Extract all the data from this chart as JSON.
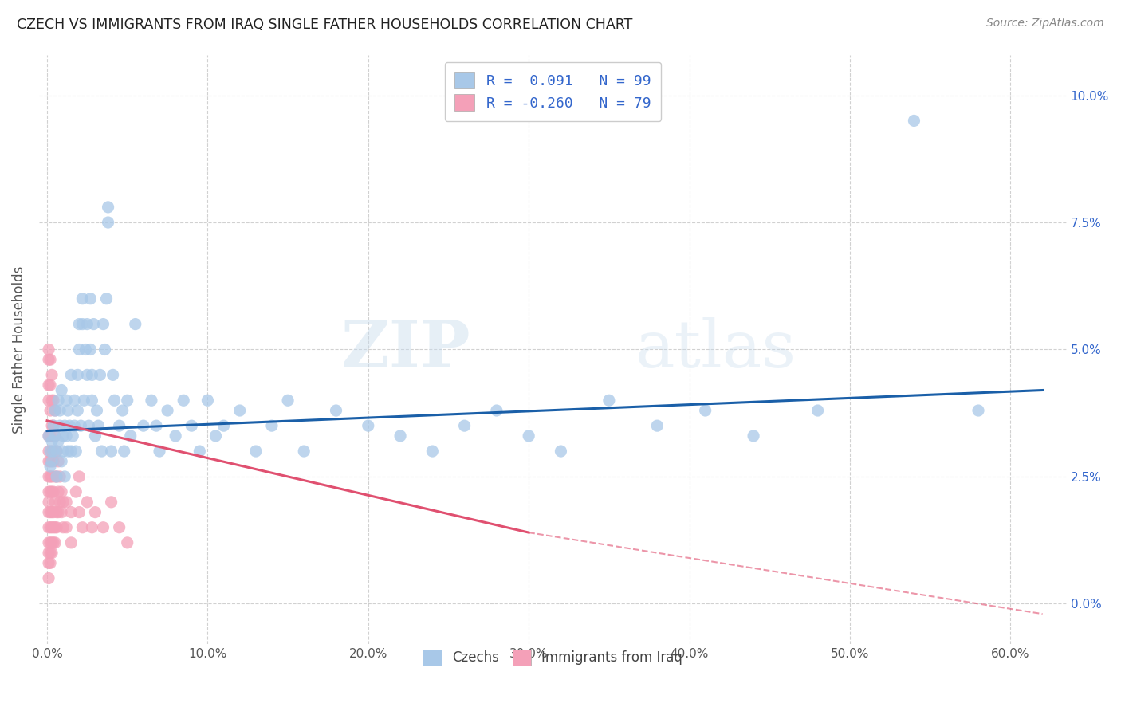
{
  "title": "CZECH VS IMMIGRANTS FROM IRAQ SINGLE FATHER HOUSEHOLDS CORRELATION CHART",
  "source": "Source: ZipAtlas.com",
  "xlabel_ticks": [
    "0.0%",
    "10.0%",
    "20.0%",
    "30.0%",
    "40.0%",
    "50.0%",
    "60.0%"
  ],
  "xlabel_vals": [
    0.0,
    0.1,
    0.2,
    0.3,
    0.4,
    0.5,
    0.6
  ],
  "ylabel_ticks": [
    "0.0%",
    "2.5%",
    "5.0%",
    "7.5%",
    "10.0%"
  ],
  "ylabel_vals": [
    0.0,
    0.025,
    0.05,
    0.075,
    0.1
  ],
  "ylabel_label": "Single Father Households",
  "xlim": [
    -0.005,
    0.635
  ],
  "ylim": [
    -0.008,
    0.108
  ],
  "czech_color": "#a8c8e8",
  "iraq_color": "#f4a0b8",
  "trend_czech_color": "#1a5fa8",
  "trend_iraq_color": "#e05070",
  "watermark_zip": "ZIP",
  "watermark_atlas": "atlas",
  "czech_scatter": [
    [
      0.001,
      0.033
    ],
    [
      0.002,
      0.03
    ],
    [
      0.002,
      0.027
    ],
    [
      0.003,
      0.032
    ],
    [
      0.003,
      0.028
    ],
    [
      0.004,
      0.035
    ],
    [
      0.004,
      0.03
    ],
    [
      0.005,
      0.038
    ],
    [
      0.005,
      0.033
    ],
    [
      0.006,
      0.025
    ],
    [
      0.006,
      0.03
    ],
    [
      0.007,
      0.04
    ],
    [
      0.007,
      0.032
    ],
    [
      0.008,
      0.038
    ],
    [
      0.008,
      0.035
    ],
    [
      0.009,
      0.042
    ],
    [
      0.009,
      0.028
    ],
    [
      0.01,
      0.033
    ],
    [
      0.01,
      0.03
    ],
    [
      0.011,
      0.035
    ],
    [
      0.011,
      0.025
    ],
    [
      0.012,
      0.04
    ],
    [
      0.012,
      0.033
    ],
    [
      0.013,
      0.03
    ],
    [
      0.013,
      0.038
    ],
    [
      0.014,
      0.035
    ],
    [
      0.015,
      0.045
    ],
    [
      0.015,
      0.03
    ],
    [
      0.016,
      0.033
    ],
    [
      0.017,
      0.04
    ],
    [
      0.017,
      0.035
    ],
    [
      0.018,
      0.03
    ],
    [
      0.019,
      0.045
    ],
    [
      0.019,
      0.038
    ],
    [
      0.02,
      0.055
    ],
    [
      0.02,
      0.05
    ],
    [
      0.021,
      0.035
    ],
    [
      0.022,
      0.06
    ],
    [
      0.022,
      0.055
    ],
    [
      0.023,
      0.04
    ],
    [
      0.024,
      0.05
    ],
    [
      0.025,
      0.045
    ],
    [
      0.025,
      0.055
    ],
    [
      0.026,
      0.035
    ],
    [
      0.027,
      0.05
    ],
    [
      0.027,
      0.06
    ],
    [
      0.028,
      0.04
    ],
    [
      0.028,
      0.045
    ],
    [
      0.029,
      0.055
    ],
    [
      0.03,
      0.033
    ],
    [
      0.031,
      0.038
    ],
    [
      0.032,
      0.035
    ],
    [
      0.033,
      0.045
    ],
    [
      0.034,
      0.03
    ],
    [
      0.035,
      0.055
    ],
    [
      0.036,
      0.05
    ],
    [
      0.037,
      0.06
    ],
    [
      0.038,
      0.075
    ],
    [
      0.038,
      0.078
    ],
    [
      0.04,
      0.03
    ],
    [
      0.041,
      0.045
    ],
    [
      0.042,
      0.04
    ],
    [
      0.045,
      0.035
    ],
    [
      0.047,
      0.038
    ],
    [
      0.048,
      0.03
    ],
    [
      0.05,
      0.04
    ],
    [
      0.052,
      0.033
    ],
    [
      0.055,
      0.055
    ],
    [
      0.06,
      0.035
    ],
    [
      0.065,
      0.04
    ],
    [
      0.068,
      0.035
    ],
    [
      0.07,
      0.03
    ],
    [
      0.075,
      0.038
    ],
    [
      0.08,
      0.033
    ],
    [
      0.085,
      0.04
    ],
    [
      0.09,
      0.035
    ],
    [
      0.095,
      0.03
    ],
    [
      0.1,
      0.04
    ],
    [
      0.105,
      0.033
    ],
    [
      0.11,
      0.035
    ],
    [
      0.12,
      0.038
    ],
    [
      0.13,
      0.03
    ],
    [
      0.14,
      0.035
    ],
    [
      0.15,
      0.04
    ],
    [
      0.16,
      0.03
    ],
    [
      0.18,
      0.038
    ],
    [
      0.2,
      0.035
    ],
    [
      0.22,
      0.033
    ],
    [
      0.24,
      0.03
    ],
    [
      0.26,
      0.035
    ],
    [
      0.28,
      0.038
    ],
    [
      0.3,
      0.033
    ],
    [
      0.32,
      0.03
    ],
    [
      0.35,
      0.04
    ],
    [
      0.38,
      0.035
    ],
    [
      0.41,
      0.038
    ],
    [
      0.44,
      0.033
    ],
    [
      0.48,
      0.038
    ],
    [
      0.54,
      0.095
    ],
    [
      0.58,
      0.038
    ]
  ],
  "iraq_scatter": [
    [
      0.001,
      0.05
    ],
    [
      0.001,
      0.048
    ],
    [
      0.001,
      0.043
    ],
    [
      0.001,
      0.04
    ],
    [
      0.001,
      0.033
    ],
    [
      0.001,
      0.03
    ],
    [
      0.001,
      0.028
    ],
    [
      0.001,
      0.025
    ],
    [
      0.001,
      0.022
    ],
    [
      0.001,
      0.02
    ],
    [
      0.001,
      0.018
    ],
    [
      0.001,
      0.015
    ],
    [
      0.001,
      0.012
    ],
    [
      0.001,
      0.01
    ],
    [
      0.001,
      0.008
    ],
    [
      0.001,
      0.005
    ],
    [
      0.002,
      0.048
    ],
    [
      0.002,
      0.043
    ],
    [
      0.002,
      0.038
    ],
    [
      0.002,
      0.033
    ],
    [
      0.002,
      0.028
    ],
    [
      0.002,
      0.025
    ],
    [
      0.002,
      0.022
    ],
    [
      0.002,
      0.018
    ],
    [
      0.002,
      0.015
    ],
    [
      0.002,
      0.012
    ],
    [
      0.002,
      0.01
    ],
    [
      0.002,
      0.008
    ],
    [
      0.003,
      0.045
    ],
    [
      0.003,
      0.04
    ],
    [
      0.003,
      0.035
    ],
    [
      0.003,
      0.03
    ],
    [
      0.003,
      0.025
    ],
    [
      0.003,
      0.022
    ],
    [
      0.003,
      0.018
    ],
    [
      0.003,
      0.015
    ],
    [
      0.003,
      0.012
    ],
    [
      0.003,
      0.01
    ],
    [
      0.004,
      0.04
    ],
    [
      0.004,
      0.035
    ],
    [
      0.004,
      0.028
    ],
    [
      0.004,
      0.022
    ],
    [
      0.004,
      0.018
    ],
    [
      0.004,
      0.015
    ],
    [
      0.004,
      0.012
    ],
    [
      0.005,
      0.038
    ],
    [
      0.005,
      0.033
    ],
    [
      0.005,
      0.025
    ],
    [
      0.005,
      0.02
    ],
    [
      0.005,
      0.015
    ],
    [
      0.005,
      0.012
    ],
    [
      0.006,
      0.03
    ],
    [
      0.006,
      0.025
    ],
    [
      0.006,
      0.018
    ],
    [
      0.006,
      0.015
    ],
    [
      0.007,
      0.028
    ],
    [
      0.007,
      0.022
    ],
    [
      0.007,
      0.018
    ],
    [
      0.008,
      0.025
    ],
    [
      0.008,
      0.02
    ],
    [
      0.009,
      0.022
    ],
    [
      0.009,
      0.018
    ],
    [
      0.01,
      0.02
    ],
    [
      0.01,
      0.015
    ],
    [
      0.012,
      0.02
    ],
    [
      0.012,
      0.015
    ],
    [
      0.015,
      0.018
    ],
    [
      0.015,
      0.012
    ],
    [
      0.018,
      0.022
    ],
    [
      0.02,
      0.025
    ],
    [
      0.02,
      0.018
    ],
    [
      0.022,
      0.015
    ],
    [
      0.025,
      0.02
    ],
    [
      0.028,
      0.015
    ],
    [
      0.03,
      0.018
    ],
    [
      0.035,
      0.015
    ],
    [
      0.04,
      0.02
    ],
    [
      0.045,
      0.015
    ],
    [
      0.05,
      0.012
    ]
  ],
  "trend_czech_x0": 0.0,
  "trend_czech_x1": 0.62,
  "trend_czech_y0": 0.034,
  "trend_czech_y1": 0.042,
  "trend_iraq_x0": 0.0,
  "trend_iraq_x1": 0.3,
  "trend_iraq_y0": 0.036,
  "trend_iraq_y1": 0.014,
  "trend_iraq_dash_x0": 0.3,
  "trend_iraq_dash_x1": 0.62,
  "trend_iraq_dash_y0": 0.014,
  "trend_iraq_dash_y1": -0.002
}
